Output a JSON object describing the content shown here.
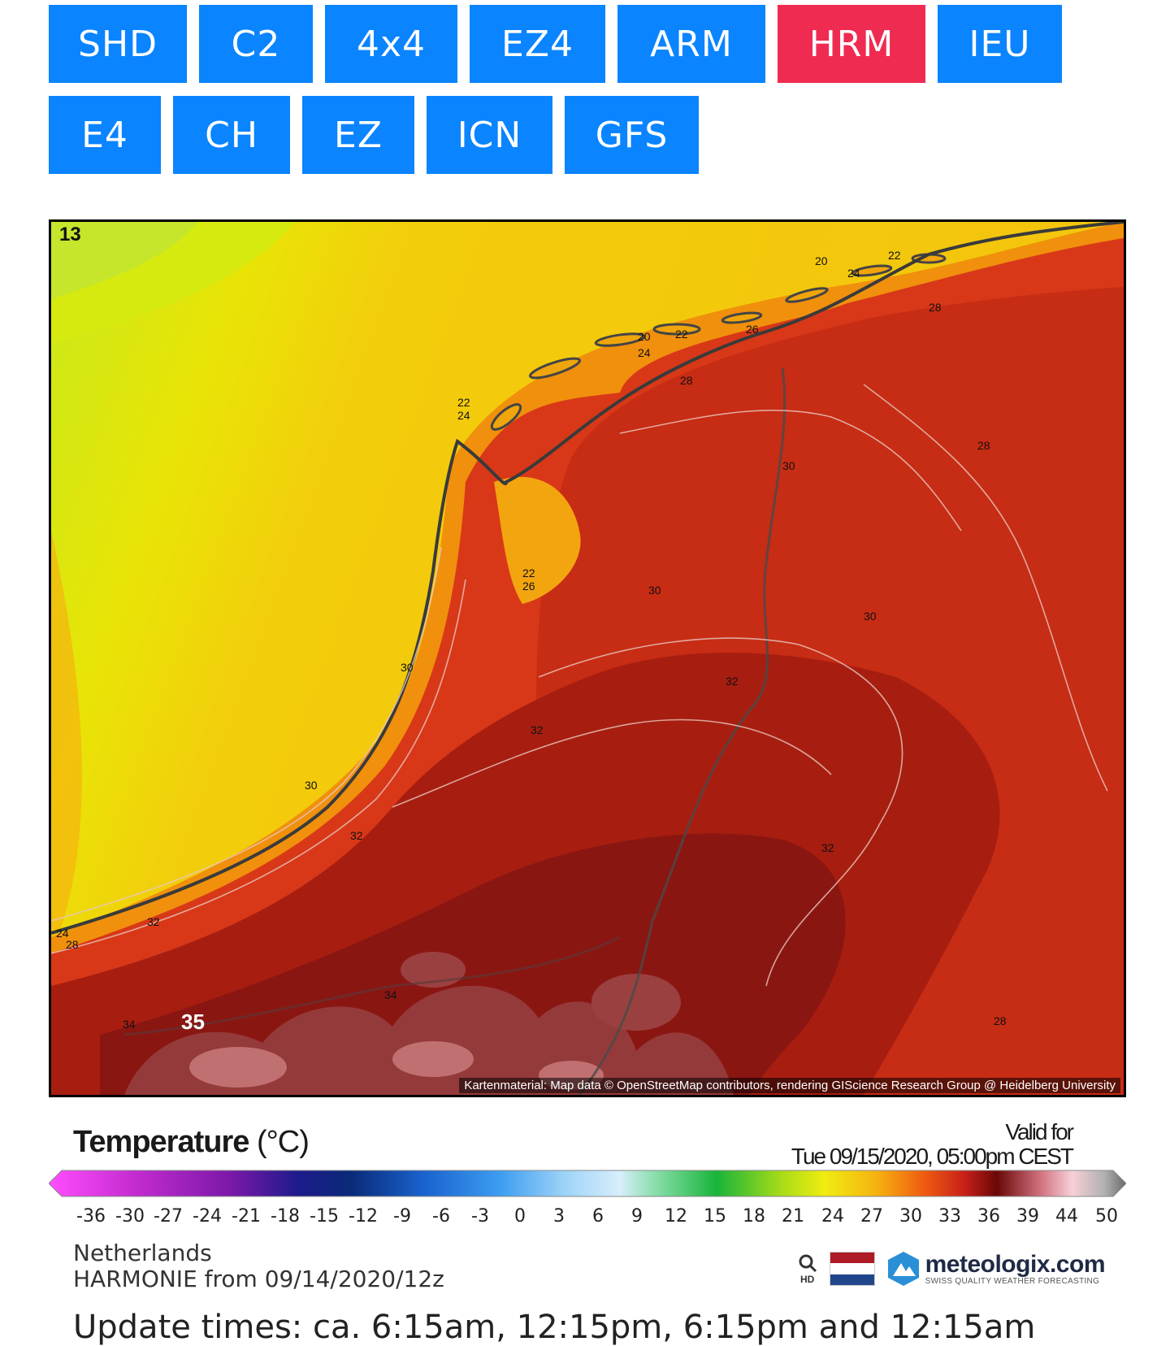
{
  "models_row1": [
    {
      "label": "SHD",
      "active": false
    },
    {
      "label": "C2",
      "active": false
    },
    {
      "label": "4x4",
      "active": false
    },
    {
      "label": "EZ4",
      "active": false
    },
    {
      "label": "ARM",
      "active": false
    },
    {
      "label": "HRM",
      "active": true
    },
    {
      "label": "IEU",
      "active": false
    }
  ],
  "models_row2": [
    {
      "label": "E4",
      "active": false
    },
    {
      "label": "CH",
      "active": false
    },
    {
      "label": "EZ",
      "active": false
    },
    {
      "label": "ICN",
      "active": false
    },
    {
      "label": "GFS",
      "active": false
    }
  ],
  "colors": {
    "button": "#0a84ff",
    "button_active": "#ef2b51",
    "text_on_button": "#ffffff"
  },
  "map": {
    "corner_value": "13",
    "max_label": "35",
    "credit": "Kartenmaterial: Map data © OpenStreetMap contributors, rendering GIScience Research Group @ Heidelberg University",
    "isotherm_labels": [
      "20",
      "22",
      "24",
      "28",
      "20",
      "24",
      "22",
      "26",
      "28",
      "22",
      "24",
      "30",
      "22",
      "26",
      "30",
      "30",
      "32",
      "32",
      "30",
      "30",
      "32",
      "32",
      "28",
      "24",
      "28",
      "32",
      "34",
      "34",
      "28"
    ]
  },
  "legend": {
    "title": "Temperature",
    "unit": "(°C)",
    "valid_for_label": "Valid for",
    "valid_for_value": "Tue 09/15/2020, 05:00pm CEST",
    "ticks": [
      "-36",
      "-30",
      "-27",
      "-24",
      "-21",
      "-18",
      "-15",
      "-12",
      "-9",
      "-6",
      "-3",
      "0",
      "3",
      "6",
      "9",
      "12",
      "15",
      "18",
      "21",
      "24",
      "27",
      "30",
      "33",
      "36",
      "39",
      "44",
      "50"
    ]
  },
  "footer": {
    "region": "Netherlands",
    "model_run": "HARMONIE from 09/14/2020/12z",
    "update_times": "Update times: ca. 6:15am, 12:15pm, 6:15pm and 12:15am",
    "hd_label": "HD",
    "brand_name": "meteologix.com",
    "brand_tagline": "SWISS QUALITY WEATHER FORECASTING"
  }
}
